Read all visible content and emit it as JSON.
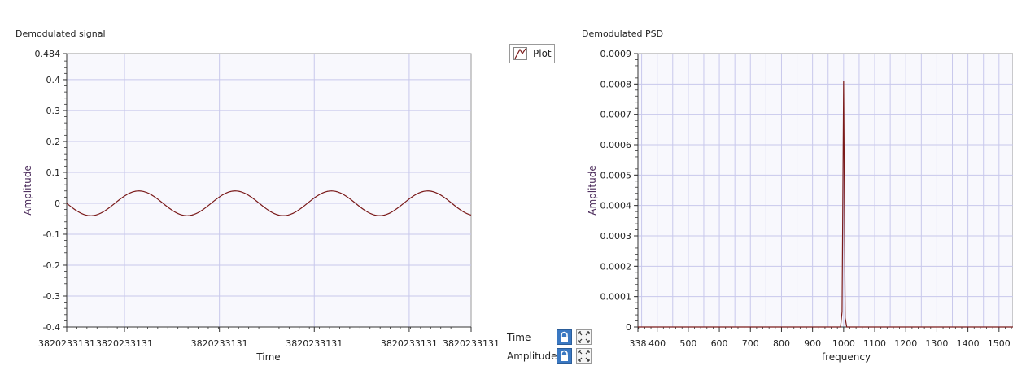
{
  "chart_data": [
    {
      "type": "line",
      "title": "Demodulated signal",
      "xlabel": "Time",
      "ylabel": "Amplitude",
      "ylim": [
        -0.4,
        0.484
      ],
      "y_ticks": [
        0.484,
        0.4,
        0.3,
        0.2,
        0.1,
        0,
        -0.1,
        -0.2,
        -0.3,
        -0.4
      ],
      "y_tick_labels": [
        "0.484",
        "0.4",
        "0.3",
        "0.2",
        "0.1",
        "0",
        "-0.1",
        "-0.2",
        "-0.3",
        "-0.4"
      ],
      "x_tick_labels": [
        "3820233131",
        "3820233131",
        "3820233131",
        "3820233131",
        "3820233131",
        "3820233131"
      ],
      "x_tick_fractions": [
        0,
        0.1429,
        0.3776,
        0.6122,
        0.8469,
        1.0
      ],
      "grid": true,
      "series": [
        {
          "name": "Plot",
          "color": "#7a1a1a",
          "waveform": "sine",
          "amplitude": 0.04,
          "cycles": 4.2,
          "start_value": 0.0,
          "initial_direction": "down"
        }
      ]
    },
    {
      "type": "line",
      "title": "Demodulated PSD",
      "xlabel": "frequency",
      "ylabel": "Amplitude",
      "xlim": [
        338,
        1545
      ],
      "ylim": [
        0,
        0.0009
      ],
      "y_ticks": [
        0.0009,
        0.0008,
        0.0007,
        0.0006,
        0.0005,
        0.0004,
        0.0003,
        0.0002,
        0.0001,
        0
      ],
      "y_tick_labels": [
        "0.0009",
        "0.0008",
        "0.0007",
        "0.0006",
        "0.0005",
        "0.0004",
        "0.0003",
        "0.0002",
        "0.0001",
        "0"
      ],
      "x_ticks": [
        338,
        400,
        500,
        600,
        700,
        800,
        900,
        1000,
        1100,
        1200,
        1300,
        1400,
        1500
      ],
      "x_tick_labels": [
        "338",
        "400",
        "500",
        "600",
        "700",
        "800",
        "900",
        "1000",
        "1100",
        "1200",
        "1300",
        "1400",
        "1500"
      ],
      "grid": true,
      "series": [
        {
          "name": "Plot",
          "color": "#7a1a1a",
          "x": [
            338,
            990,
            995,
            1000,
            1002,
            1005,
            1010,
            1545
          ],
          "y": [
            0,
            0,
            5e-05,
            0.00081,
            0.0005,
            3e-05,
            0,
            0
          ]
        }
      ]
    }
  ],
  "legend": {
    "label": "Plot",
    "color": "#7a1a1a",
    "icon": "line-plot-icon"
  },
  "scale_panel": {
    "rows": [
      {
        "label": "Time",
        "lock_icon": "lock-icon",
        "fit_icon": "zoom-fit-icon"
      },
      {
        "label": "Amplitude",
        "lock_icon": "lock-icon",
        "fit_icon": "zoom-fit-icon"
      }
    ]
  },
  "colors": {
    "grid": "#c8c8ec",
    "plot_bg": "#f8f8fd",
    "axis": "#333333",
    "lock": "#3a78c2"
  }
}
